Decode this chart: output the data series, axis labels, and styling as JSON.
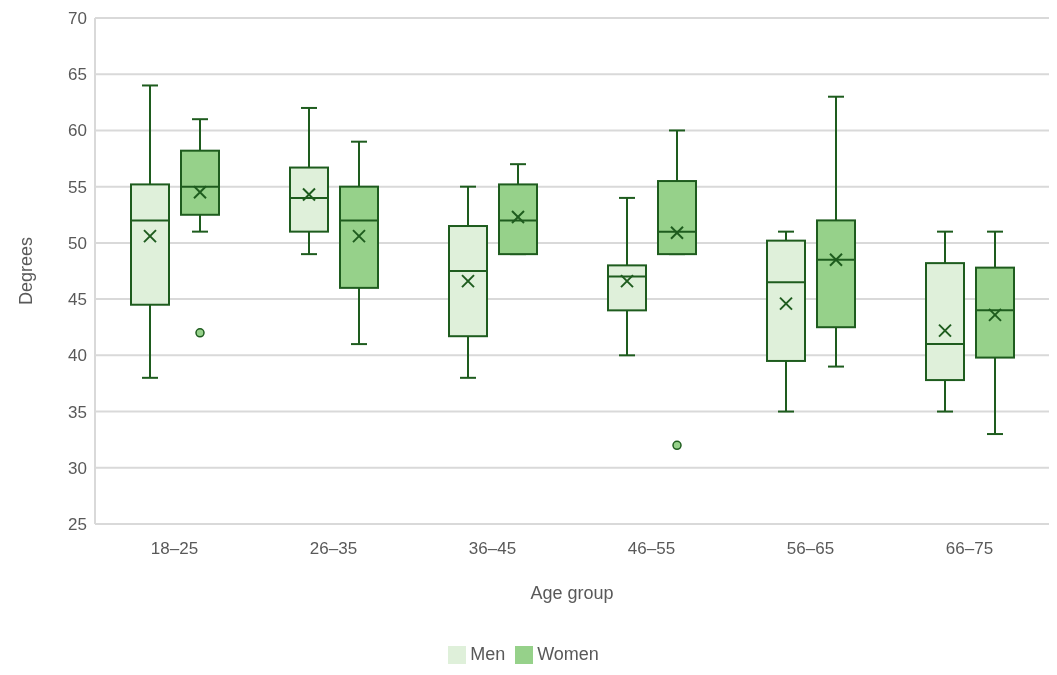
{
  "chart_data": {
    "type": "box",
    "xlabel": "Age group",
    "ylabel": "Degrees",
    "categories": [
      "18–25",
      "26–35",
      "36–45",
      "46–55",
      "56–65",
      "66–75"
    ],
    "ylim": [
      25,
      70
    ],
    "yticks": [
      25,
      30,
      35,
      40,
      45,
      50,
      55,
      60,
      65,
      70
    ],
    "grid": "y",
    "legend": "bottom",
    "series": [
      {
        "name": "Men",
        "color": "#dff0da",
        "boxes": [
          {
            "low": 38,
            "q1": 44.5,
            "median": 52,
            "q3": 55.2,
            "high": 64,
            "mean": 50.6
          },
          {
            "low": 49,
            "q1": 51,
            "median": 54,
            "q3": 56.7,
            "high": 62,
            "mean": 54.3
          },
          {
            "low": 38,
            "q1": 41.7,
            "median": 47.5,
            "q3": 51.5,
            "high": 55,
            "mean": 46.6
          },
          {
            "low": 40,
            "q1": 44,
            "median": 47,
            "q3": 48,
            "high": 54,
            "mean": 46.6
          },
          {
            "low": 35,
            "q1": 39.5,
            "median": 46.5,
            "q3": 50.2,
            "high": 51,
            "mean": 44.6
          },
          {
            "low": 35,
            "q1": 37.8,
            "median": 41,
            "q3": 48.2,
            "high": 51,
            "mean": 42.2
          }
        ]
      },
      {
        "name": "Women",
        "color": "#96d18a",
        "boxes": [
          {
            "low": 51,
            "q1": 52.5,
            "median": 55,
            "q3": 58.2,
            "high": 61,
            "mean": 54.5,
            "outliers": [
              42
            ]
          },
          {
            "low": 41,
            "q1": 46,
            "median": 52,
            "q3": 55,
            "high": 59,
            "mean": 50.6
          },
          {
            "low": 49,
            "q1": 49,
            "median": 52,
            "q3": 55.2,
            "high": 57,
            "mean": 52.3
          },
          {
            "low": 49,
            "q1": 49,
            "median": 51,
            "q3": 55.5,
            "high": 60,
            "mean": 50.9,
            "outliers": [
              32
            ]
          },
          {
            "low": 39,
            "q1": 42.5,
            "median": 48.5,
            "q3": 52,
            "high": 63,
            "mean": 48.5
          },
          {
            "low": 33,
            "q1": 39.8,
            "median": 44,
            "q3": 47.8,
            "high": 51,
            "mean": 43.6
          }
        ]
      }
    ]
  }
}
